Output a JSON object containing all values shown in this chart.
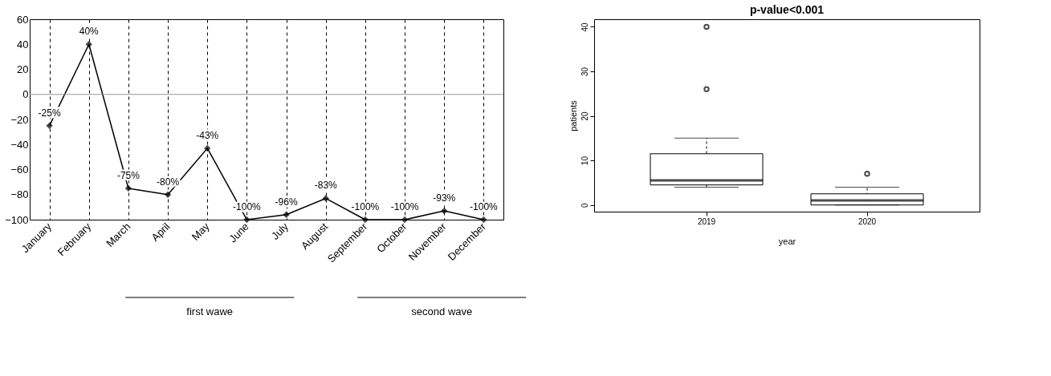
{
  "chart_data": [
    {
      "type": "line",
      "categories": [
        "January",
        "February",
        "March",
        "April",
        "May",
        "June",
        "July",
        "August",
        "September",
        "October",
        "November",
        "December"
      ],
      "series": [
        {
          "color": "#000000",
          "values": [
            -25,
            40,
            -75,
            -80,
            -43,
            -100,
            -96,
            -83,
            -100,
            -100,
            -93,
            -100
          ],
          "value_labels": [
            "-25%",
            "40%",
            "-75%",
            "-80%",
            "-43%",
            "-100%",
            "-96%",
            "-83%",
            "-100%",
            "-100%",
            "-93%",
            "-100%"
          ]
        }
      ],
      "ylim": [
        -100,
        60
      ],
      "yticks": [
        -100,
        -80,
        -60,
        -40,
        -20,
        0,
        20,
        40,
        60
      ],
      "grid": "x",
      "marker": "diamond",
      "line_style": "solid",
      "ref_lines": [
        {
          "axis": "y",
          "value": 0,
          "color": "#999999"
        }
      ],
      "annotations": [
        "first wawe",
        "second wave"
      ]
    },
    {
      "type": "box",
      "title": "p-value<0.001",
      "xlabel": "year",
      "ylabel": "patients",
      "categories": [
        "2019",
        "2020"
      ],
      "boxes": [
        {
          "low": 4,
          "q1": 4.5,
          "median": 5.5,
          "q3": 11.5,
          "high": 15,
          "outliers": [
            26,
            40
          ]
        },
        {
          "low": 0,
          "q1": 0,
          "median": 1,
          "q3": 2.5,
          "high": 4,
          "outliers": [
            7
          ]
        }
      ],
      "ylim": [
        -1.5,
        41.7
      ],
      "yticks": [
        0,
        10,
        20,
        30,
        40
      ],
      "grid": false
    }
  ]
}
